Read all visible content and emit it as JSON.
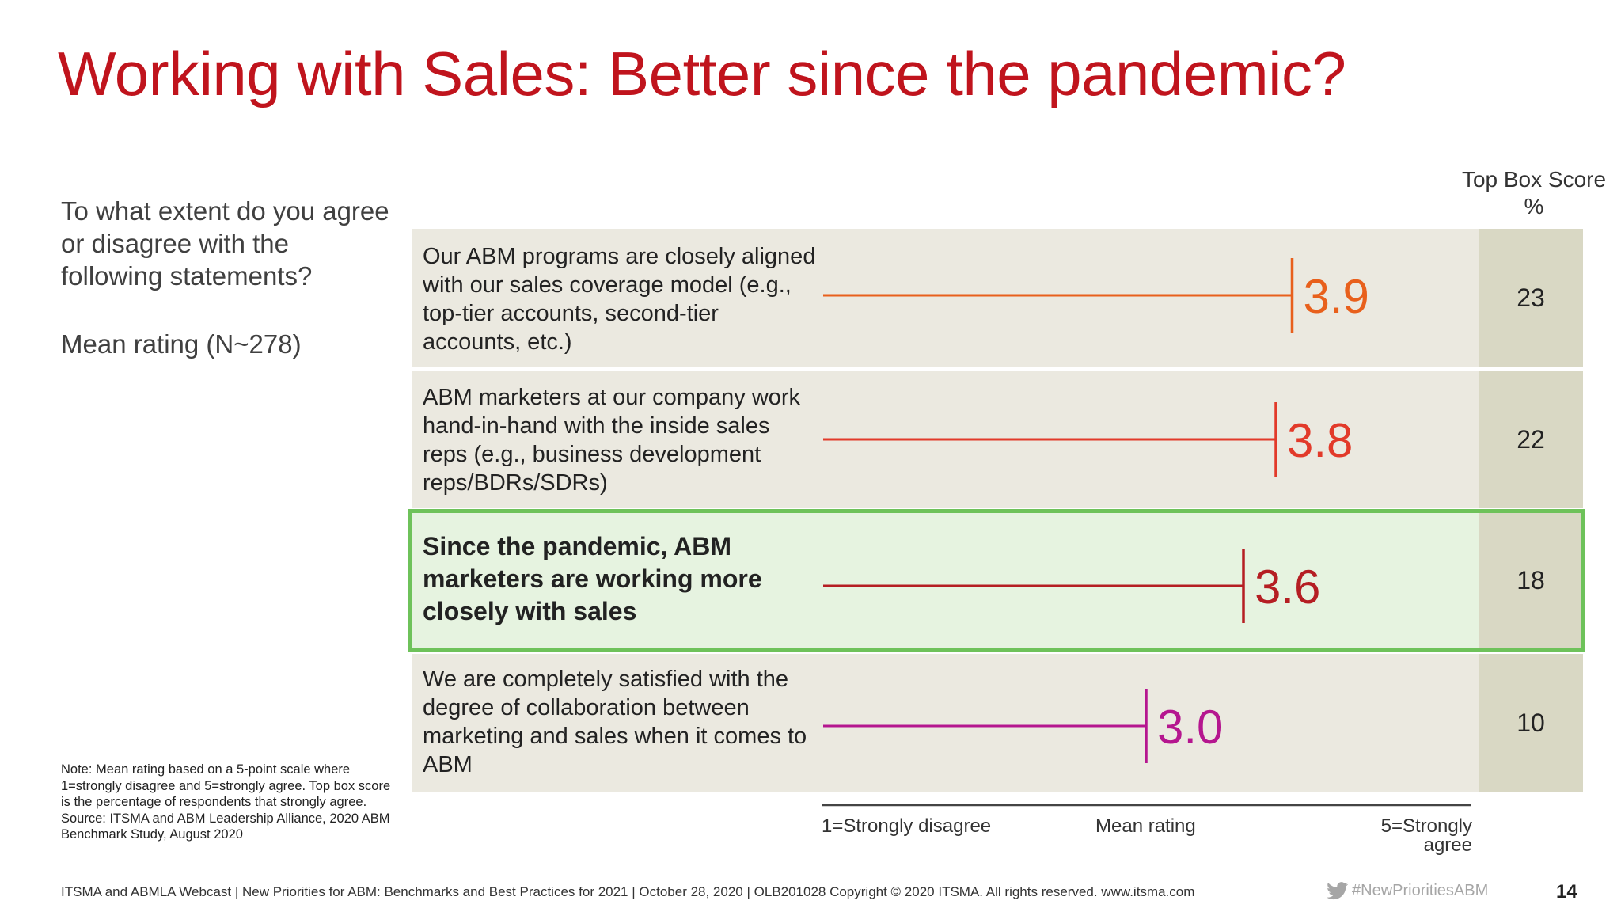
{
  "title": "Working with Sales: Better since the pandemic?",
  "question": "To what extent do you agree or disagree with the following statements?",
  "mean_label": "Mean rating (N~278)",
  "column_header": "Top Box Score %",
  "chart_data": {
    "type": "bar",
    "title": "",
    "xlabel": "Mean rating",
    "xlim": [
      1,
      5
    ],
    "axis_min_label": "1=Strongly disagree",
    "axis_max_label": "5=Strongly agree",
    "categories": [
      "Our ABM programs are closely aligned with our sales coverage model (e.g., top-tier accounts, second-tier accounts, etc.)",
      "ABM marketers at our company work hand-in-hand with the inside sales reps (e.g., business development reps/BDRs/SDRs)",
      "Since the pandemic, ABM marketers are working more closely with sales",
      "We are completely satisfied with the degree of collaboration between marketing and sales when it comes to ABM"
    ],
    "values": [
      3.9,
      3.8,
      3.6,
      3.0
    ],
    "value_labels": [
      "3.9",
      "3.8",
      "3.6",
      "3.0"
    ],
    "top_box_scores": [
      "23",
      "22",
      "18",
      "10"
    ],
    "colors": [
      "#e8601c",
      "#e23a2a",
      "#b51e23",
      "#b5168f"
    ],
    "highlighted_index": 2,
    "highlight_color": "#6ec25a"
  },
  "note": "Note: Mean rating based on a 5-point scale where 1=strongly disagree and 5=strongly agree. Top box score is the percentage of respondents that strongly agree. Source: ITSMA and ABM Leadership Alliance, 2020 ABM Benchmark Study, August 2020",
  "footer": {
    "text": "ITSMA and ABMLA Webcast | New Priorities for ABM: Benchmarks and Best Practices for 2021 | October 28, 2020 | OLB201028 Copyright © 2020 ITSMA. All rights reserved. www.itsma.com",
    "hashtag": "#NewPrioritiesABM",
    "hashtag_icon": "twitter-bird-icon",
    "page_number": "14"
  }
}
